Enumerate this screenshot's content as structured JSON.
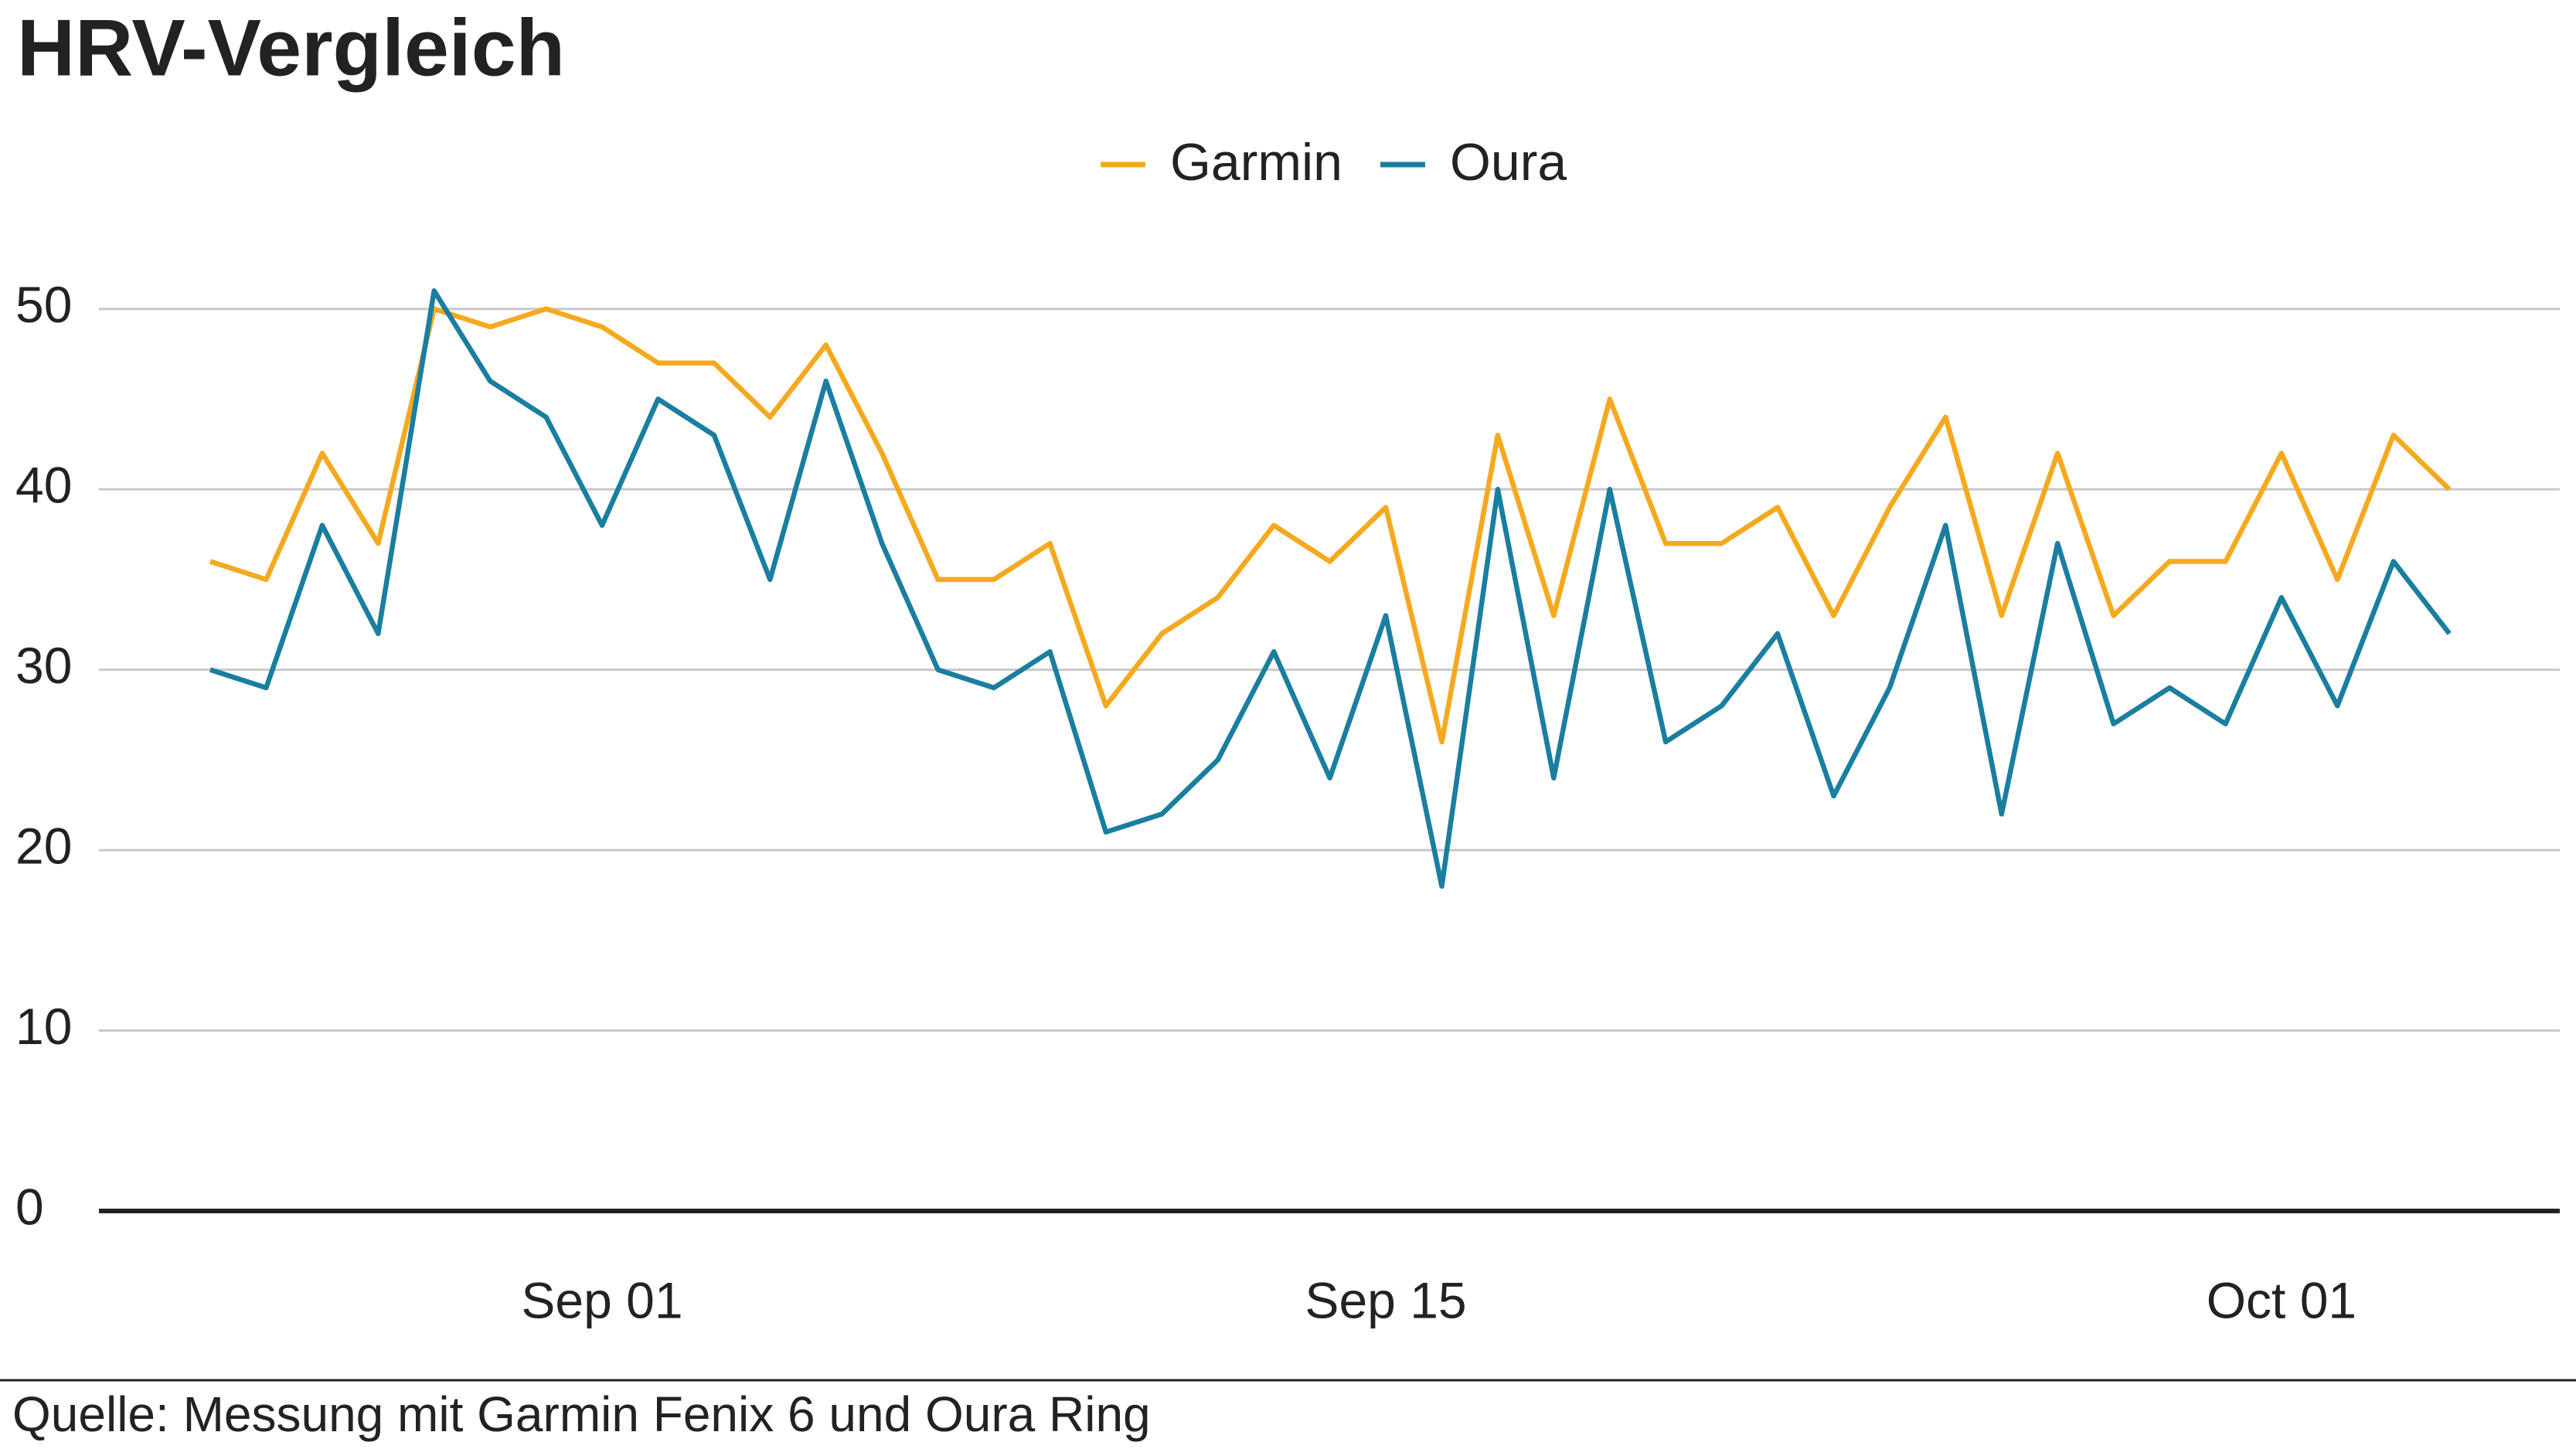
{
  "chart_data": {
    "type": "line",
    "title": "HRV-Vergleich",
    "source": "Quelle: Messung mit Garmin Fenix 6 und Oura Ring",
    "x": [
      "Aug 25",
      "Aug 26",
      "Aug 27",
      "Aug 28",
      "Aug 29",
      "Aug 30",
      "Aug 31",
      "Sep 01",
      "Sep 02",
      "Sep 03",
      "Sep 04",
      "Sep 05",
      "Sep 06",
      "Sep 07",
      "Sep 08",
      "Sep 09",
      "Sep 10",
      "Sep 11",
      "Sep 12",
      "Sep 13",
      "Sep 14",
      "Sep 15",
      "Sep 16",
      "Sep 17",
      "Sep 18",
      "Sep 19",
      "Sep 20",
      "Sep 21",
      "Sep 22",
      "Sep 23",
      "Sep 24",
      "Sep 25",
      "Sep 26",
      "Sep 27",
      "Sep 28",
      "Sep 29",
      "Sep 30",
      "Oct 01",
      "Oct 02",
      "Oct 03",
      "Oct 04"
    ],
    "xticks": [
      "Sep 01",
      "Sep 15",
      "Oct 01"
    ],
    "series": [
      {
        "name": "Garmin",
        "color": "#f5a91f",
        "values": [
          36,
          35,
          42,
          37,
          50,
          49,
          50,
          49,
          47,
          47,
          44,
          48,
          42,
          35,
          35,
          37,
          28,
          32,
          34,
          38,
          36,
          39,
          26,
          43,
          33,
          45,
          37,
          37,
          39,
          33,
          39,
          44,
          33,
          42,
          33,
          36,
          36,
          42,
          35,
          43,
          40
        ]
      },
      {
        "name": "Oura",
        "color": "#1a7ea0",
        "values": [
          30,
          29,
          38,
          32,
          51,
          46,
          44,
          38,
          45,
          43,
          35,
          46,
          37,
          30,
          29,
          31,
          21,
          22,
          25,
          31,
          24,
          33,
          18,
          40,
          24,
          40,
          26,
          28,
          32,
          23,
          29,
          38,
          22,
          37,
          27,
          29,
          27,
          34,
          28,
          36,
          32
        ]
      }
    ],
    "ylim": [
      0,
      52
    ],
    "yticks": [
      0,
      10,
      20,
      30,
      40,
      50
    ],
    "grid": true,
    "legend": "top"
  }
}
